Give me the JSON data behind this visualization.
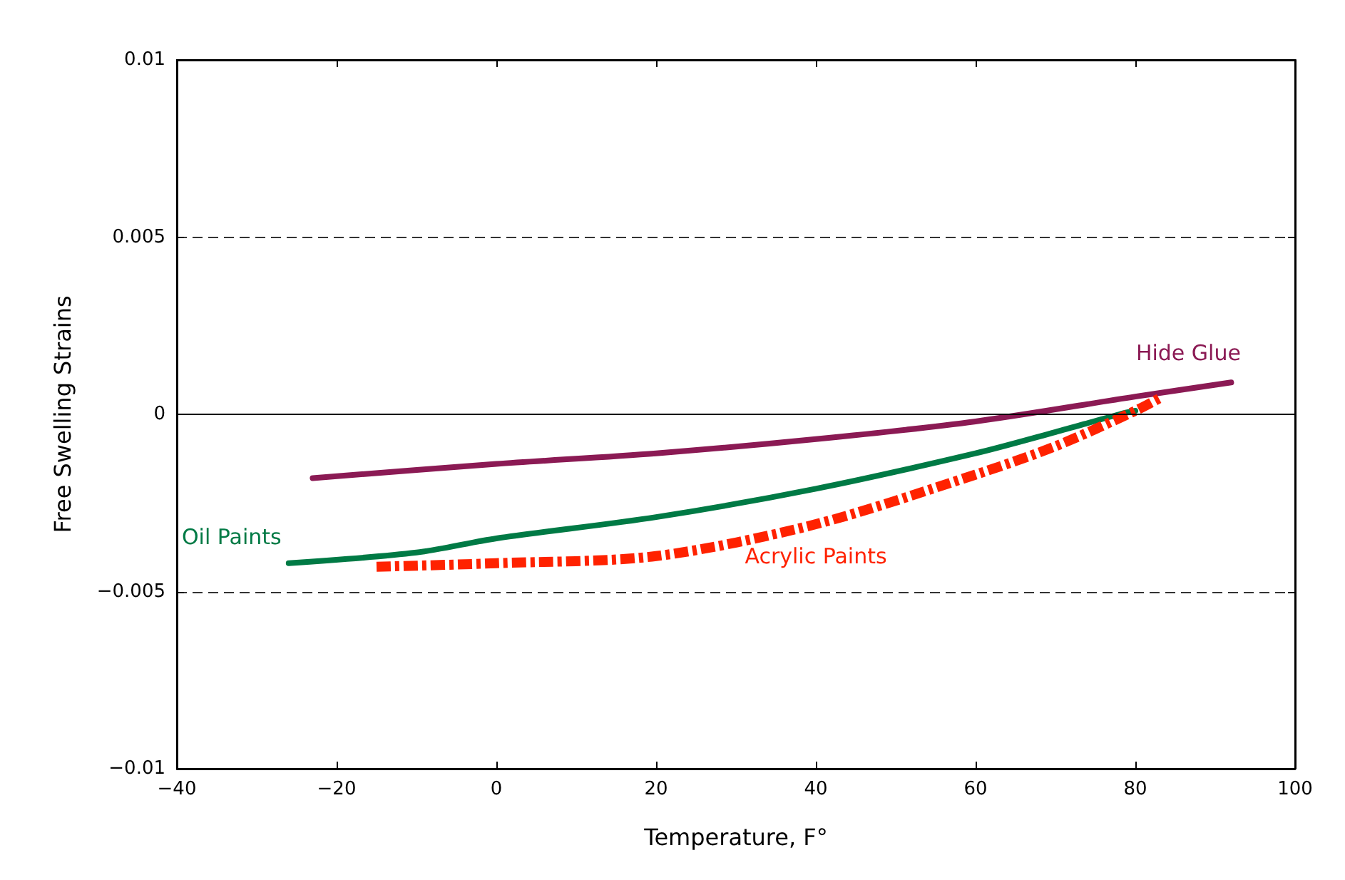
{
  "chart_data": {
    "type": "line",
    "xlabel": "Temperature, F°",
    "ylabel": "Free Swelling Strains",
    "xlim": [
      -40,
      100
    ],
    "xticks": [
      -40,
      -20,
      0,
      20,
      40,
      60,
      80,
      100
    ],
    "ylim": [
      -0.01,
      0.01
    ],
    "yticks": [
      -0.01,
      -0.005,
      0,
      0.005,
      0.01
    ],
    "grid": "y",
    "legend": false,
    "marker": "none",
    "ref_lines": [
      {
        "axis": "y",
        "value": 0,
        "color": "#000000",
        "line_style": "solid"
      }
    ],
    "series": [
      {
        "name": "Hide Glue",
        "color": "#8b1a54",
        "line_style": "solid",
        "x": [
          -23,
          0,
          20,
          40,
          60,
          80,
          92
        ],
        "values": [
          -0.0018,
          -0.0014,
          -0.0011,
          -0.0007,
          -0.0002,
          0.0005,
          0.0009
        ]
      },
      {
        "name": "Oil Paints",
        "color": "#007a45",
        "line_style": "solid",
        "x": [
          -26,
          -10,
          0,
          20,
          40,
          60,
          70,
          78,
          80
        ],
        "values": [
          -0.0042,
          -0.0039,
          -0.0035,
          -0.0029,
          -0.0021,
          -0.0011,
          -0.0005,
          0,
          0.0001
        ]
      },
      {
        "name": "Acrylic Paints",
        "color": "#ff2200",
        "line_style": "dashed",
        "x": [
          -15,
          0,
          20,
          40,
          60,
          70,
          80,
          83
        ],
        "values": [
          -0.0043,
          -0.0042,
          -0.004,
          -0.0031,
          -0.0017,
          -0.0009,
          0.0001,
          0.00045
        ]
      }
    ]
  }
}
